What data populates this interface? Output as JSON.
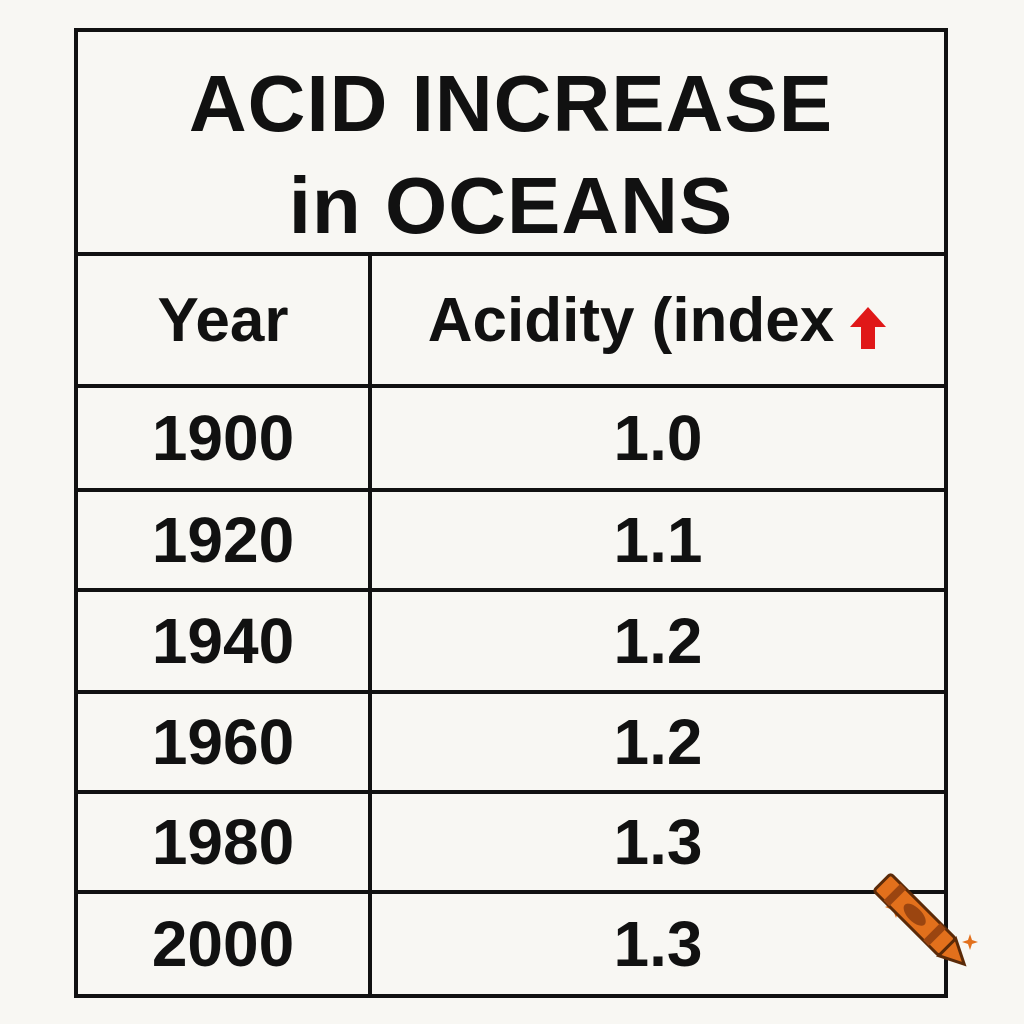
{
  "title": {
    "line1": "ACID INCREASE",
    "line2": "in OCEANS"
  },
  "chart_data": {
    "type": "table",
    "title": "ACID INCREASE in OCEANS",
    "columns": [
      "Year",
      "Acidity (index"
    ],
    "rows": [
      {
        "year": "1900",
        "value": "1.0"
      },
      {
        "year": "1920",
        "value": "1.1"
      },
      {
        "year": "1940",
        "value": "1.2"
      },
      {
        "year": "1960",
        "value": "1.2"
      },
      {
        "year": "1980",
        "value": "1.3"
      },
      {
        "year": "2000",
        "value": "1.3"
      }
    ]
  },
  "icons": {
    "header_arrow": "up-arrow-icon",
    "corner_decoration": "crayon-icon"
  },
  "colors": {
    "arrow": "#e01818",
    "crayon": "#e2701c",
    "sparkle": "#e2701c",
    "border": "#111111",
    "background": "#f8f7f3"
  }
}
